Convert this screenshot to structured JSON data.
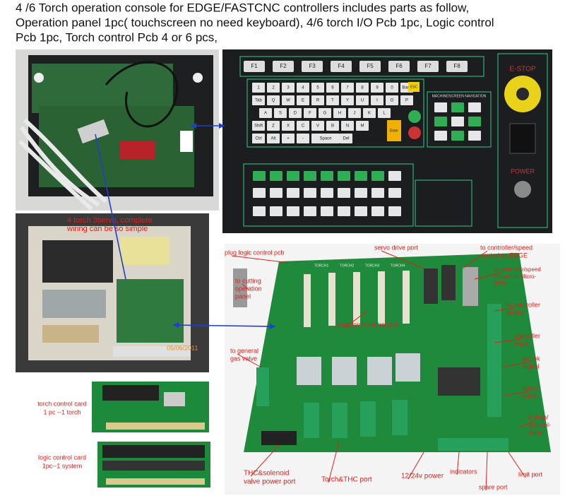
{
  "header": {
    "lines": [
      "4 /6 Torch operation console for EDGE/FASTCNC controllers includes parts as follow,",
      "Operation panel 1pc( touchscreen no need keyboard),  4/6 torch I/O Pcb 1pc,  Logic control",
      "Pcb 1pc, Torch control Pcb 4 or 6 pcs,"
    ]
  },
  "panel": {
    "function_keys": [
      "F1",
      "F2",
      "F3",
      "F4",
      "F5",
      "F6",
      "F7",
      "F8"
    ],
    "key_rows": [
      [
        "1",
        "2",
        "3",
        "4",
        "5",
        "6",
        "7",
        "8",
        "9",
        "0",
        "Back"
      ],
      [
        "Tab",
        "Q",
        "W",
        "E",
        "R",
        "T",
        "Y",
        "U",
        "I",
        "O",
        "P"
      ],
      [
        "A",
        "S",
        "D",
        "F",
        "G",
        "H",
        "J",
        "K",
        "L"
      ],
      [
        "Shift",
        "Z",
        "X",
        "C",
        "V",
        "B",
        "N",
        "M"
      ],
      [
        "Ctrl",
        "Alt",
        "+",
        "-",
        "Space",
        "Del"
      ]
    ],
    "esc": "ESC",
    "enter": "Enter",
    "navigation": "MACHINE/SCREEN NAVIGATION",
    "estop": "E-STOP",
    "power": "POWER"
  },
  "cabinet": {
    "caption": [
      "4 torch 3servo, complete",
      "wiring can be so simple"
    ],
    "date": "05/06/2011"
  },
  "cards": [
    {
      "caption": [
        "torch control card",
        "1 pc --1 torch"
      ]
    },
    {
      "caption": [
        "logic control card",
        "1pc--1 system"
      ]
    }
  ],
  "board": {
    "silkscreen": [
      "TORCH1",
      "TORCH2",
      "TORCH3",
      "TORCH4"
    ],
    "annotations": [
      {
        "lines": [
          "plug logic control pcb"
        ]
      },
      {
        "lines": [
          "to cutting",
          "operation",
          "panel"
        ]
      },
      {
        "lines": [
          "servo drive port"
        ]
      },
      {
        "lines": [
          "to controller/speed",
          "control as EDGE"
        ]
      },
      {
        "lines": [
          "to controller/speed",
          "control as Micro-",
          "HYD"
        ]
      },
      {
        "lines": [
          "plug torch control pcb"
        ]
      },
      {
        "lines": [
          "to controller",
          "output"
        ]
      },
      {
        "lines": [
          "controller",
          "input"
        ]
      },
      {
        "lines": [
          "arc ok",
          "signal"
        ]
      },
      {
        "lines": [
          "spare",
          "input"
        ]
      },
      {
        "lines": [
          "E-stop/",
          "anti-col-",
          "lision"
        ]
      },
      {
        "lines": [
          "to general",
          "gas valve"
        ]
      },
      {
        "lines": [
          "THC&solenoid",
          "valve power port"
        ]
      },
      {
        "lines": [
          "Torch&THC port"
        ]
      },
      {
        "lines": [
          "12/24v power"
        ]
      },
      {
        "lines": [
          "indicators"
        ]
      },
      {
        "lines": [
          "spare port"
        ]
      },
      {
        "lines": [
          "limit port"
        ]
      }
    ]
  }
}
